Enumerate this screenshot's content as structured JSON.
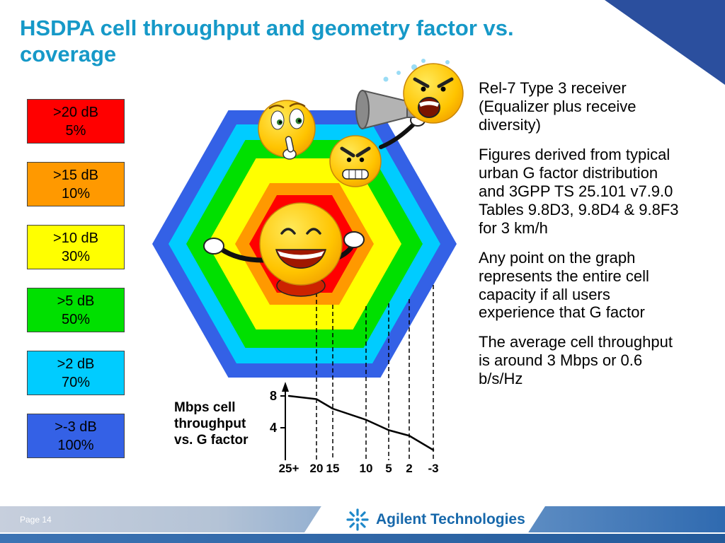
{
  "slide": {
    "title": "HSDPA cell throughput and geometry factor vs.\ncoverage",
    "accent_color": "#1699c8",
    "corner_accent_color": "#2b4f9e"
  },
  "legend": {
    "items": [
      {
        "threshold": ">20 dB",
        "coverage": "5%",
        "color": "#ff0000"
      },
      {
        "threshold": ">15 dB",
        "coverage": "10%",
        "color": "#ff9900"
      },
      {
        "threshold": ">10 dB",
        "coverage": "30%",
        "color": "#ffff00"
      },
      {
        "threshold": ">5 dB",
        "coverage": "50%",
        "color": "#00e000"
      },
      {
        "threshold": ">2 dB",
        "coverage": "70%",
        "color": "#00ccff"
      },
      {
        "threshold": ">-3 dB",
        "coverage": "100%",
        "color": "#3461e6"
      }
    ]
  },
  "hexagons": [
    {
      "name": "ring-100pct-gt-neg3dB",
      "color": "#3461e6"
    },
    {
      "name": "ring-70pct-gt-2dB",
      "color": "#00ccff"
    },
    {
      "name": "ring-50pct-gt-5dB",
      "color": "#00e000"
    },
    {
      "name": "ring-30pct-gt-10dB",
      "color": "#ffff00"
    },
    {
      "name": "ring-10pct-gt-15dB",
      "color": "#ff9900"
    },
    {
      "name": "ring-5pct-gt-20dB",
      "color": "#ff0000"
    }
  ],
  "notes": [
    "Rel-7 Type 3 receiver (Equalizer plus receive diversity)",
    "Figures derived from typical urban G factor distribution and 3GPP TS 25.101 v7.9.0 Tables 9.8D3, 9.8D4 & 9.8F3 for 3 km/h",
    "Any point on the graph represents the entire cell capacity if all users experience that G factor",
    "The average cell throughput is around 3 Mbps or 0.6 b/s/Hz"
  ],
  "chart": {
    "caption": "Mbps cell\nthroughput\nvs. G factor",
    "y_ticks": [
      "8",
      "4"
    ],
    "x_labels": [
      "25+",
      "20",
      "15",
      "10",
      "5",
      "2",
      "-3"
    ]
  },
  "chart_data": {
    "type": "line",
    "title": "Mbps cell throughput vs. G factor",
    "xlabel": "G factor",
    "ylabel": "Mbps cell throughput",
    "categories": [
      "25+",
      "20",
      "15",
      "10",
      "5",
      "2",
      "-3"
    ],
    "values": [
      8,
      7.6,
      6.4,
      5.0,
      3.7,
      3.0,
      1.2
    ],
    "ylim": [
      0,
      8.5
    ],
    "y_ticks_shown": [
      8,
      4
    ],
    "grid": false,
    "legend_position": "none"
  },
  "footer": {
    "page": "Page 14",
    "brand": "Agilent Technologies",
    "brand_color": "#1768ab"
  },
  "decorations": {
    "cliparts": [
      "happy-face-open-arms",
      "shushing-face",
      "angry-face",
      "shouting-face-with-megaphone"
    ]
  }
}
